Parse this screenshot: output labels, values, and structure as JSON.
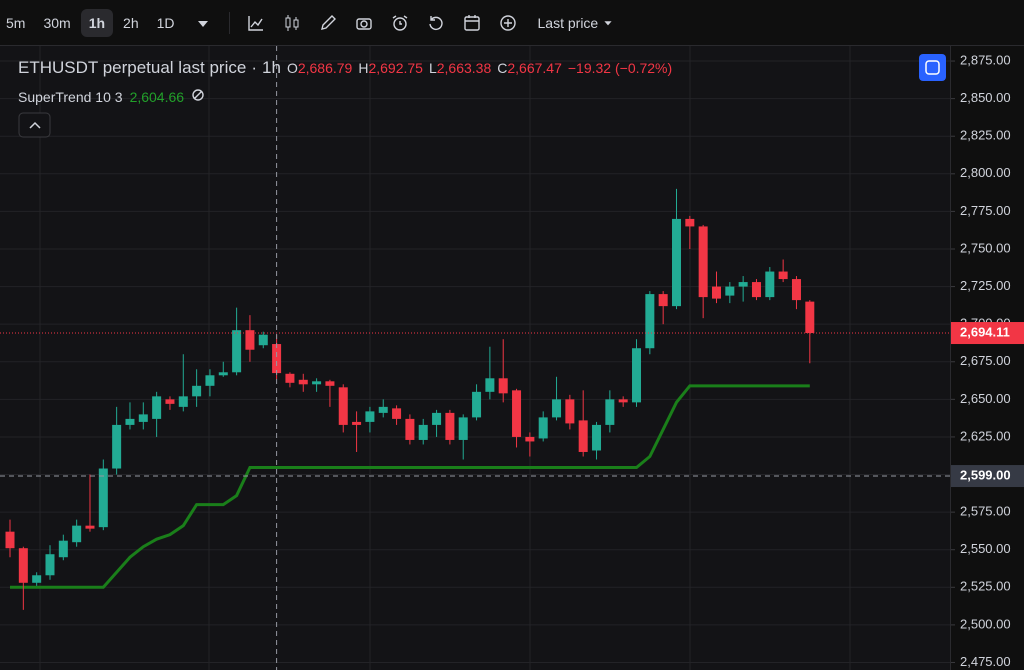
{
  "toolbar": {
    "intervals": [
      "5m",
      "30m",
      "1h",
      "2h",
      "1D"
    ],
    "price_source": "Last price"
  },
  "header": {
    "symbol": "ETHUSDT perpetual last price",
    "separator": "·",
    "interval": "1h",
    "ohlc": [
      {
        "key": "O",
        "text": "2,686.79"
      },
      {
        "key": "H",
        "text": "2,692.75"
      },
      {
        "key": "L",
        "text": "2,663.38"
      },
      {
        "key": "C",
        "text": "2,667.47"
      }
    ],
    "change": "−19.32 (−0.72%)",
    "indicator_value": "2,604.66"
  },
  "chart_data": {
    "type": "candlestick",
    "categories": [
      null,
      null,
      null,
      null,
      null,
      null,
      null,
      null,
      null,
      null,
      null,
      null,
      null,
      null,
      null,
      null,
      null,
      null,
      null,
      null,
      null,
      null,
      null,
      null,
      null,
      null,
      null,
      null,
      null,
      null,
      null,
      null,
      null,
      null,
      null,
      null,
      null,
      null,
      null,
      null,
      null,
      null,
      null,
      null,
      null,
      null,
      null,
      null,
      null,
      null,
      null,
      null,
      null,
      null,
      null,
      null,
      null,
      null,
      null,
      null,
      null
    ],
    "open": [
      2562,
      2551,
      2528,
      2533,
      2545,
      2555,
      2566,
      2565,
      2604,
      2633,
      2635,
      2637,
      2650,
      2645,
      2652,
      2659,
      2666,
      2668,
      2696,
      2686,
      2686.79,
      2667,
      2663,
      2660,
      2662,
      2658,
      2635,
      2635,
      2641,
      2644,
      2637,
      2623,
      2633,
      2641,
      2623,
      2638,
      2655,
      2664,
      2656,
      2625,
      2624,
      2638,
      2650,
      2636,
      2616,
      2633,
      2650,
      2648,
      2684,
      2720,
      2712,
      2770,
      2765,
      2725,
      2719,
      2725,
      2728,
      2718,
      2735,
      2730,
      2715
    ],
    "high": [
      2570,
      2552,
      2535,
      2553,
      2560,
      2570,
      2600,
      2610,
      2645,
      2648,
      2648,
      2655,
      2652,
      2680,
      2670,
      2670,
      2675,
      2711,
      2706,
      2695,
      2692.75,
      2668,
      2667,
      2664,
      2663,
      2660,
      2642,
      2645,
      2650,
      2646,
      2640,
      2637,
      2643,
      2643,
      2640,
      2660,
      2685,
      2690,
      2657,
      2628,
      2642,
      2665,
      2653,
      2656,
      2635,
      2656,
      2652,
      2690,
      2722,
      2722,
      2790,
      2772,
      2766,
      2735,
      2728,
      2732,
      2730,
      2738,
      2743,
      2732,
      2716
    ],
    "low": [
      2545,
      2510,
      2526,
      2530,
      2543,
      2552,
      2562,
      2563,
      2600,
      2630,
      2630,
      2625,
      2643,
      2642,
      2645,
      2652,
      2665,
      2666,
      2675,
      2684,
      2663.38,
      2658,
      2655,
      2655,
      2645,
      2628,
      2615,
      2628,
      2638,
      2633,
      2620,
      2620,
      2625,
      2620,
      2610,
      2636,
      2650,
      2648,
      2618,
      2612,
      2622,
      2636,
      2630,
      2612,
      2610,
      2628,
      2645,
      2645,
      2680,
      2700,
      2710,
      2750,
      2704,
      2714,
      2714,
      2715,
      2716,
      2716,
      2728,
      2710,
      2674
    ],
    "close": [
      2551,
      2528,
      2533,
      2547,
      2556,
      2566,
      2564,
      2604,
      2633,
      2637,
      2640,
      2652,
      2647,
      2652,
      2659,
      2666,
      2668,
      2696,
      2683,
      2693,
      2667.47,
      2661,
      2660,
      2662,
      2659,
      2633,
      2633,
      2642,
      2645,
      2637,
      2623,
      2633,
      2641,
      2623,
      2638,
      2655,
      2664,
      2654,
      2625,
      2622,
      2638,
      2650,
      2634,
      2615,
      2633,
      2650,
      2648,
      2684,
      2720,
      2712,
      2770,
      2765,
      2718,
      2717,
      2725,
      2728,
      2718,
      2735,
      2730,
      2716,
      2694.11
    ],
    "up_color": "#22ab94",
    "down_color": "#f23645",
    "series": [
      {
        "name": "SuperTrend 10 3",
        "color": "#1a7f1a",
        "values": [
          2525,
          2525,
          2525,
          2525,
          2525,
          2525,
          2525,
          2525,
          2535,
          2545,
          2552,
          2557,
          2560,
          2566,
          2580,
          2580,
          2580,
          2586,
          2604.66,
          2604.66,
          2604.66,
          2604.66,
          2604.66,
          2604.66,
          2604.66,
          2604.66,
          2604.66,
          2604.66,
          2604.66,
          2604.66,
          2604.66,
          2604.66,
          2604.66,
          2604.66,
          2604.66,
          2604.66,
          2604.66,
          2604.66,
          2604.66,
          2604.66,
          2604.66,
          2604.66,
          2604.66,
          2604.66,
          2604.66,
          2604.66,
          2604.66,
          2604.66,
          2612,
          2630,
          2648,
          2659,
          2659,
          2659,
          2659,
          2659,
          2659,
          2659,
          2659,
          2659,
          2659
        ]
      }
    ],
    "ylim": [
      2470,
      2885
    ],
    "yticks": [
      {
        "value": 2475,
        "label": "2,475.00"
      },
      {
        "value": 2500,
        "label": "2,500.00"
      },
      {
        "value": 2525,
        "label": "2,525.00"
      },
      {
        "value": 2550,
        "label": "2,550.00"
      },
      {
        "value": 2575,
        "label": "2,575.00"
      },
      {
        "value": 2600,
        "label": "2,600.00"
      },
      {
        "value": 2625,
        "label": "2,625.00"
      },
      {
        "value": 2650,
        "label": "2,650.00"
      },
      {
        "value": 2675,
        "label": "2,675.00"
      },
      {
        "value": 2700,
        "label": "2,700.00"
      },
      {
        "value": 2725,
        "label": "2,725.00"
      },
      {
        "value": 2750,
        "label": "2,750.00"
      },
      {
        "value": 2775,
        "label": "2,775.00"
      },
      {
        "value": 2800,
        "label": "2,800.00"
      },
      {
        "value": 2825,
        "label": "2,825.00"
      },
      {
        "value": 2850,
        "label": "2,850.00"
      },
      {
        "value": 2875,
        "label": "2,875.00"
      }
    ],
    "last_price": {
      "value": 2694.11,
      "label": "2,694.11"
    },
    "crosshair": {
      "value": 2599,
      "label": "2,599.00"
    },
    "grid": true
  }
}
